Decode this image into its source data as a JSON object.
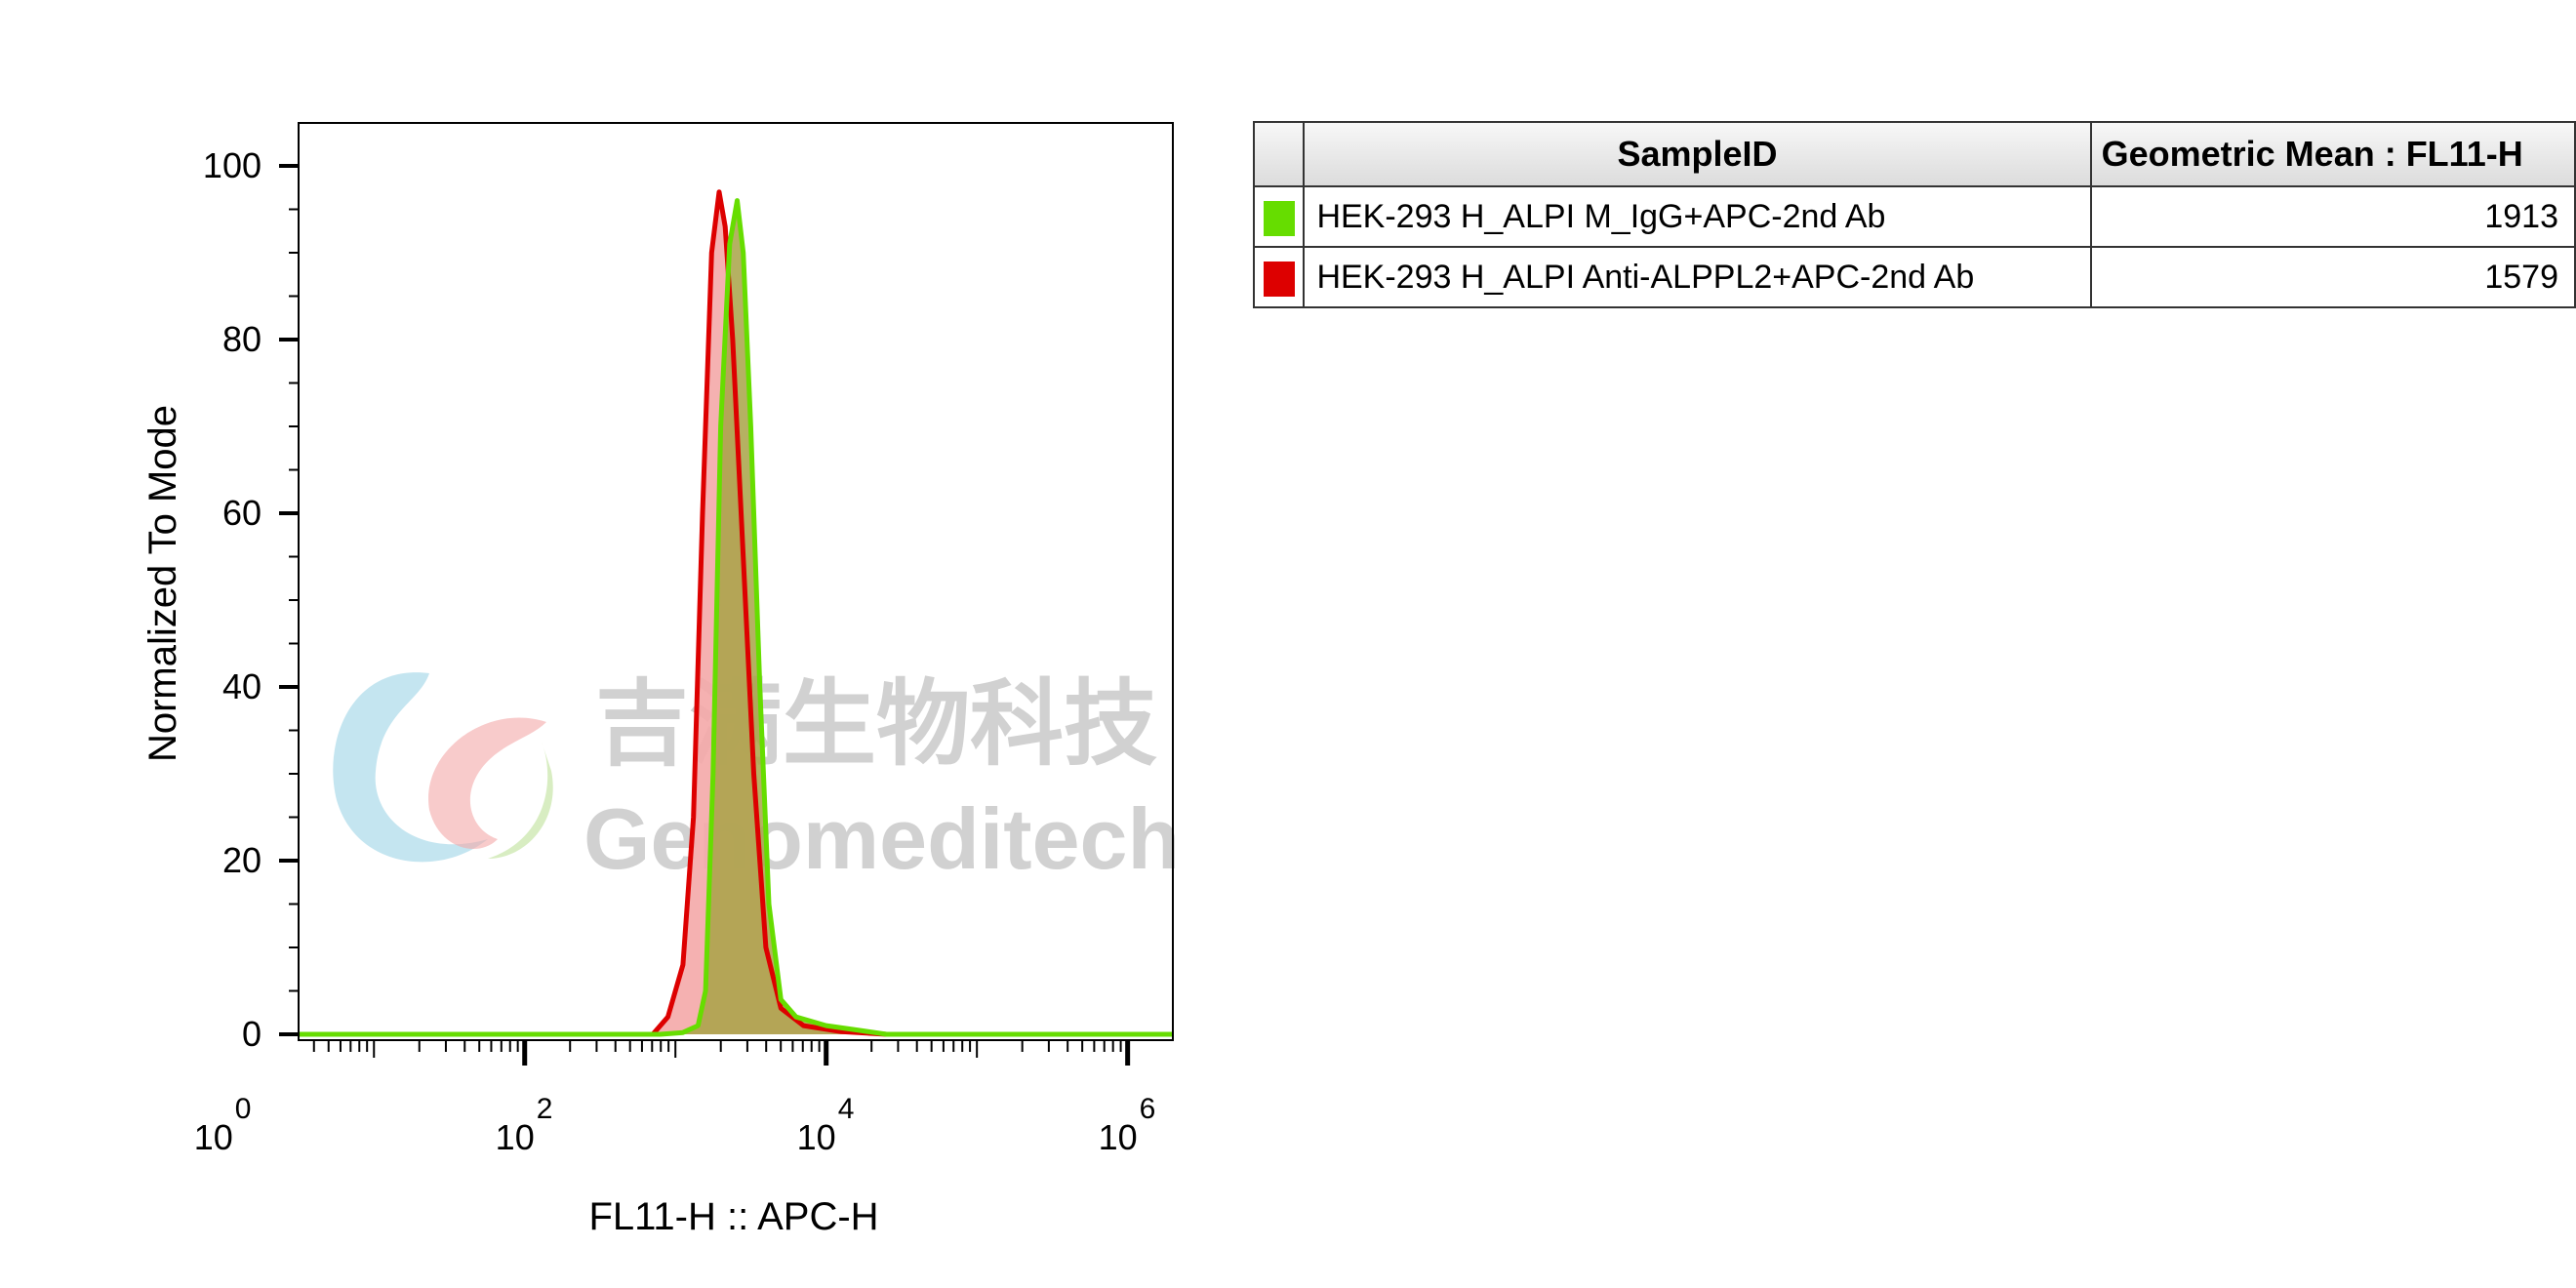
{
  "chart_data": {
    "type": "area",
    "xlabel": "FL11-H :: APC-H",
    "ylabel": "Normalized To Mode",
    "xscale": "log",
    "xlim": [
      0.5,
      6.3
    ],
    "ylim": [
      0,
      100
    ],
    "x_ticks": [
      {
        "base": "10",
        "exp": "0",
        "value": 1
      },
      {
        "base": "10",
        "exp": "2",
        "value": 100
      },
      {
        "base": "10",
        "exp": "4",
        "value": 10000
      },
      {
        "base": "10",
        "exp": "6",
        "value": 1000000
      }
    ],
    "y_ticks": [
      "0",
      "20",
      "40",
      "60",
      "80",
      "100"
    ],
    "grid": false,
    "series": [
      {
        "name": "HEK-293 H_ALPI M_IgG+APC-2nd Ab",
        "color": "#66dd00",
        "fill": "#a8a346",
        "geometric_mean": "1913",
        "points": [
          [
            0.5,
            0
          ],
          [
            2.9,
            0
          ],
          [
            3.05,
            0.2
          ],
          [
            3.15,
            1
          ],
          [
            3.2,
            5
          ],
          [
            3.25,
            30
          ],
          [
            3.3,
            70
          ],
          [
            3.36,
            91
          ],
          [
            3.41,
            96
          ],
          [
            3.45,
            90
          ],
          [
            3.5,
            70
          ],
          [
            3.56,
            40
          ],
          [
            3.62,
            15
          ],
          [
            3.7,
            4
          ],
          [
            3.8,
            2
          ],
          [
            4.0,
            1
          ],
          [
            4.2,
            0.5
          ],
          [
            4.4,
            0
          ],
          [
            6.3,
            0
          ]
        ]
      },
      {
        "name": "HEK-293 H_ALPI Anti-ALPPL2+APC-2nd Ab",
        "color": "#dd0000",
        "fill": "#f4a8a8",
        "geometric_mean": "1579",
        "points": [
          [
            0.5,
            0
          ],
          [
            2.85,
            0
          ],
          [
            2.95,
            2
          ],
          [
            3.05,
            8
          ],
          [
            3.12,
            25
          ],
          [
            3.18,
            60
          ],
          [
            3.24,
            90
          ],
          [
            3.29,
            97
          ],
          [
            3.33,
            93
          ],
          [
            3.38,
            80
          ],
          [
            3.45,
            55
          ],
          [
            3.52,
            30
          ],
          [
            3.6,
            10
          ],
          [
            3.7,
            3
          ],
          [
            3.85,
            1
          ],
          [
            4.1,
            0.3
          ],
          [
            4.4,
            0
          ],
          [
            6.3,
            0
          ]
        ]
      }
    ]
  },
  "legend": {
    "header_sample": "SampleID",
    "header_value": "Geometric Mean : FL11-H",
    "rows": [
      {
        "color": "#66dd00",
        "sample": "HEK-293 H_ALPI M_IgG+APC-2nd Ab",
        "value": "1913"
      },
      {
        "color": "#dd0000",
        "sample": "HEK-293 H_ALPI Anti-ALPPL2+APC-2nd Ab",
        "value": "1579"
      }
    ]
  },
  "watermark": {
    "cn": "吉满生物科技",
    "en": "Genomeditech"
  }
}
